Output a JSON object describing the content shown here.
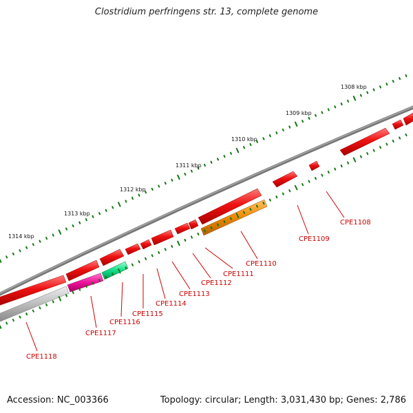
{
  "title": "Clostridium perfringens str. 13, complete genome",
  "footer": {
    "accession": "Accession: NC_003366",
    "summary": "Topology: circular; Length: 3,031,430 bp; Genes: 2,786"
  },
  "colors": {
    "backbone": "#808080",
    "gene_red": "#ee1111",
    "gene_orange": "#ee8800",
    "gene_magenta": "#ee1199",
    "gene_teal": "#11dd88",
    "gene_gray": "#bbbbbb",
    "tick_green": "#117711",
    "label_red": "#cc0000"
  },
  "scale_labels": [
    "1308 kbp",
    "1309 kbp",
    "1310 kbp",
    "1311 kbp",
    "1312 kbp",
    "1313 kbp",
    "1314 kbp"
  ],
  "genes": [
    {
      "name": "CPE1108",
      "label": "CPE1108"
    },
    {
      "name": "CPE1109",
      "label": "CPE1109"
    },
    {
      "name": "CPE1110",
      "label": "CPE1110"
    },
    {
      "name": "CPE1111",
      "label": "CPE1111"
    },
    {
      "name": "CPE1112",
      "label": "CPE1112"
    },
    {
      "name": "CPE1113",
      "label": "CPE1113"
    },
    {
      "name": "CPE1114",
      "label": "CPE1114"
    },
    {
      "name": "CPE1115",
      "label": "CPE1115"
    },
    {
      "name": "CPE1116",
      "label": "CPE1116"
    },
    {
      "name": "CPE1117",
      "label": "CPE1117"
    },
    {
      "name": "CPE1118",
      "label": "CPE1118"
    }
  ]
}
